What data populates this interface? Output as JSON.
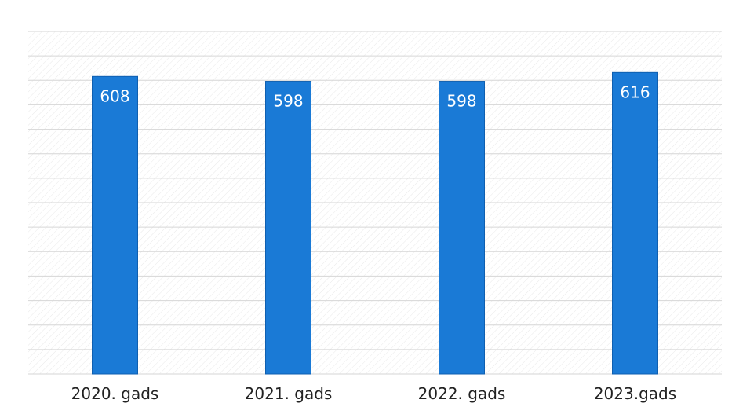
{
  "chart_data": {
    "type": "bar",
    "categories": [
      "2020. gads",
      "2021. gads",
      "2022. gads",
      "2023.gads"
    ],
    "values": [
      608,
      598,
      598,
      616
    ],
    "data_labels": [
      "608",
      "598",
      "598",
      "616"
    ],
    "title": "",
    "xlabel": "",
    "ylabel": "",
    "ylim": [
      0,
      700
    ],
    "grid": true,
    "legend": "none",
    "colors": {
      "bar": "#1a7ad6",
      "bar_edge": "#0f5fb0",
      "grid": "#d6d6d6",
      "plot_background": "#ffffff",
      "tick_label": "#222222",
      "data_label": "#ffffff"
    }
  }
}
